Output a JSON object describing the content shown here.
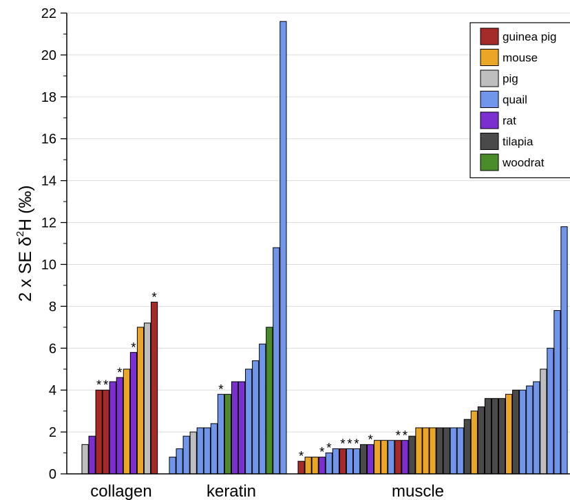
{
  "chart_data": {
    "type": "bar",
    "title": "",
    "xlabel": "",
    "ylabel_prefix": "2 x SE δ",
    "ylabel_sup": "2",
    "ylabel_suffix": "H (‰)",
    "ylim": [
      0,
      22
    ],
    "yticks": [
      0,
      2,
      4,
      6,
      8,
      10,
      12,
      14,
      16,
      18,
      20,
      22
    ],
    "grid": true,
    "legend_position": "top-right",
    "species": [
      {
        "name": "guinea pig",
        "color": "#a52a2a"
      },
      {
        "name": "mouse",
        "color": "#eba628"
      },
      {
        "name": "pig",
        "color": "#bebebe"
      },
      {
        "name": "quail",
        "color": "#6f96ea"
      },
      {
        "name": "rat",
        "color": "#7b2fd0"
      },
      {
        "name": "tilapia",
        "color": "#4a4a4a"
      },
      {
        "name": "woodrat",
        "color": "#4a8c2a"
      }
    ],
    "groups": [
      {
        "name": "collagen",
        "bars": [
          {
            "species": "pig",
            "value": 1.4,
            "marked": false
          },
          {
            "species": "rat",
            "value": 1.8,
            "marked": false
          },
          {
            "species": "guinea pig",
            "value": 4.0,
            "marked": true
          },
          {
            "species": "guinea pig",
            "value": 4.0,
            "marked": true
          },
          {
            "species": "rat",
            "value": 4.4,
            "marked": false
          },
          {
            "species": "rat",
            "value": 4.6,
            "marked": true
          },
          {
            "species": "mouse",
            "value": 5.0,
            "marked": false
          },
          {
            "species": "rat",
            "value": 5.8,
            "marked": true
          },
          {
            "species": "mouse",
            "value": 7.0,
            "marked": false
          },
          {
            "species": "pig",
            "value": 7.2,
            "marked": false
          },
          {
            "species": "guinea pig",
            "value": 8.2,
            "marked": true
          }
        ]
      },
      {
        "name": "keratin",
        "bars": [
          {
            "species": "quail",
            "value": 0.8,
            "marked": false
          },
          {
            "species": "quail",
            "value": 1.2,
            "marked": false
          },
          {
            "species": "quail",
            "value": 1.8,
            "marked": false
          },
          {
            "species": "pig",
            "value": 2.0,
            "marked": false
          },
          {
            "species": "quail",
            "value": 2.2,
            "marked": false
          },
          {
            "species": "quail",
            "value": 2.2,
            "marked": false
          },
          {
            "species": "quail",
            "value": 2.4,
            "marked": false
          },
          {
            "species": "quail",
            "value": 3.8,
            "marked": true
          },
          {
            "species": "woodrat",
            "value": 3.8,
            "marked": false
          },
          {
            "species": "rat",
            "value": 4.4,
            "marked": false
          },
          {
            "species": "rat",
            "value": 4.4,
            "marked": false
          },
          {
            "species": "quail",
            "value": 5.0,
            "marked": false
          },
          {
            "species": "quail",
            "value": 5.4,
            "marked": false
          },
          {
            "species": "quail",
            "value": 6.2,
            "marked": false
          },
          {
            "species": "woodrat",
            "value": 7.0,
            "marked": false
          },
          {
            "species": "quail",
            "value": 10.8,
            "marked": false
          },
          {
            "species": "quail",
            "value": 21.6,
            "marked": false
          }
        ]
      },
      {
        "name": "muscle",
        "bars": [
          {
            "species": "guinea pig",
            "value": 0.6,
            "marked": true
          },
          {
            "species": "mouse",
            "value": 0.8,
            "marked": false
          },
          {
            "species": "mouse",
            "value": 0.8,
            "marked": false
          },
          {
            "species": "rat",
            "value": 0.8,
            "marked": true
          },
          {
            "species": "quail",
            "value": 1.0,
            "marked": true
          },
          {
            "species": "quail",
            "value": 1.2,
            "marked": false
          },
          {
            "species": "guinea pig",
            "value": 1.2,
            "marked": true
          },
          {
            "species": "quail",
            "value": 1.2,
            "marked": true
          },
          {
            "species": "quail",
            "value": 1.2,
            "marked": true
          },
          {
            "species": "tilapia",
            "value": 1.4,
            "marked": false
          },
          {
            "species": "rat",
            "value": 1.4,
            "marked": true
          },
          {
            "species": "mouse",
            "value": 1.6,
            "marked": false
          },
          {
            "species": "mouse",
            "value": 1.6,
            "marked": false
          },
          {
            "species": "quail",
            "value": 1.6,
            "marked": false
          },
          {
            "species": "guinea pig",
            "value": 1.6,
            "marked": true
          },
          {
            "species": "rat",
            "value": 1.6,
            "marked": true
          },
          {
            "species": "tilapia",
            "value": 1.8,
            "marked": false
          },
          {
            "species": "mouse",
            "value": 2.2,
            "marked": false
          },
          {
            "species": "mouse",
            "value": 2.2,
            "marked": false
          },
          {
            "species": "mouse",
            "value": 2.2,
            "marked": false
          },
          {
            "species": "tilapia",
            "value": 2.2,
            "marked": false
          },
          {
            "species": "tilapia",
            "value": 2.2,
            "marked": false
          },
          {
            "species": "quail",
            "value": 2.2,
            "marked": false
          },
          {
            "species": "quail",
            "value": 2.2,
            "marked": false
          },
          {
            "species": "tilapia",
            "value": 2.6,
            "marked": false
          },
          {
            "species": "mouse",
            "value": 3.0,
            "marked": false
          },
          {
            "species": "tilapia",
            "value": 3.2,
            "marked": false
          },
          {
            "species": "tilapia",
            "value": 3.6,
            "marked": false
          },
          {
            "species": "tilapia",
            "value": 3.6,
            "marked": false
          },
          {
            "species": "tilapia",
            "value": 3.6,
            "marked": false
          },
          {
            "species": "mouse",
            "value": 3.8,
            "marked": false
          },
          {
            "species": "tilapia",
            "value": 4.0,
            "marked": false
          },
          {
            "species": "quail",
            "value": 4.0,
            "marked": false
          },
          {
            "species": "quail",
            "value": 4.2,
            "marked": false
          },
          {
            "species": "quail",
            "value": 4.4,
            "marked": false
          },
          {
            "species": "pig",
            "value": 5.0,
            "marked": false
          },
          {
            "species": "quail",
            "value": 6.0,
            "marked": false
          },
          {
            "species": "quail",
            "value": 7.8,
            "marked": false
          },
          {
            "species": "quail",
            "value": 11.8,
            "marked": false
          }
        ]
      }
    ],
    "marker_symbol": "*"
  }
}
